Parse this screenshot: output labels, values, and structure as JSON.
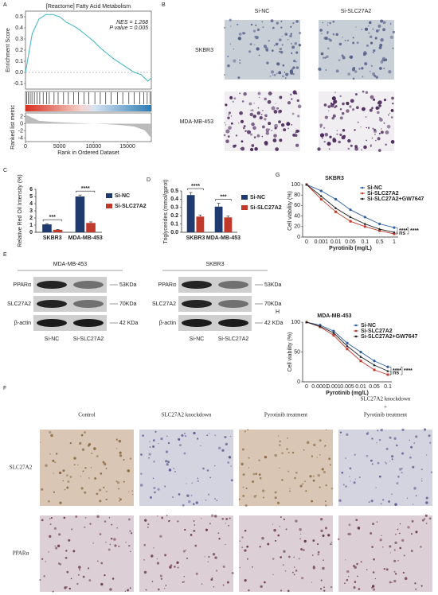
{
  "chart_data": [
    {
      "type": "gsea",
      "label": "A",
      "title": "[Reactome] Fatty Acid Metabolism",
      "annotations": [
        "NES = 1.268",
        "P value = 0.005"
      ],
      "ylabel": "Enrichment Score",
      "xlabel": "Rank in Ordered Dataset",
      "color": "#3bb4c1",
      "x": [
        0,
        1000,
        2000,
        3000,
        4000,
        5000,
        6000,
        7000,
        8000,
        9000,
        10000,
        11000,
        12000,
        13000,
        14000,
        15000,
        16000,
        17000,
        18000,
        18500
      ],
      "values": [
        0,
        0.35,
        0.48,
        0.52,
        0.52,
        0.5,
        0.45,
        0.42,
        0.38,
        0.33,
        0.28,
        0.22,
        0.17,
        0.12,
        0.08,
        0.04,
        0,
        -0.02,
        -0.08,
        -0.05
      ],
      "xlim": [
        0,
        18500
      ],
      "xticks": [
        0,
        5000,
        10000,
        15000
      ],
      "ylim": [
        -0.15,
        0.55
      ],
      "yticks": [
        0.5,
        0.4,
        0.3,
        0.2,
        0.1,
        {
          "value": 0,
          "label": "0.0"
        },
        -0.1
      ],
      "hits": [
        150,
        400,
        700,
        950,
        1300,
        1700,
        2100,
        2600,
        3100,
        3500,
        4200,
        4800,
        5600,
        6300,
        7100,
        7800,
        8600,
        9300,
        10200,
        11000,
        11800,
        12600,
        13500,
        14300,
        15200,
        16000,
        16800,
        17400,
        17900,
        18300
      ],
      "metric": {
        "ylabel": "Ranked list metric",
        "x": [
          0,
          2000,
          4000,
          6000,
          8000,
          10000,
          12000,
          14000,
          16000,
          17500,
          18500
        ],
        "values": [
          2.5,
          0.8,
          0.5,
          0.3,
          0.15,
          0,
          -0.15,
          -0.4,
          -0.8,
          -1.8,
          -4
        ],
        "ylim": [
          -5,
          3
        ],
        "yticks": [
          2,
          0,
          -2,
          -4
        ]
      }
    },
    {
      "type": "bar",
      "label": "C",
      "ylabel": "Relative Red Oil Intensity (%)",
      "categories": [
        "SKBR3",
        "MDA-MB-453"
      ],
      "series": [
        {
          "name": "Si-NC",
          "color": "#1f3a6e",
          "values": [
            1.1,
            5.0
          ],
          "errors": [
            0.1,
            0.2
          ]
        },
        {
          "name": "Si-SLC27A2",
          "color": "#c0392b",
          "values": [
            0.35,
            1.3
          ],
          "errors": [
            0.05,
            0.15
          ]
        }
      ],
      "significance": [
        "***",
        "****"
      ],
      "ylim": [
        0,
        6
      ],
      "yticks": [
        0,
        1,
        2,
        3,
        4,
        5,
        6
      ]
    },
    {
      "type": "bar",
      "label": "D",
      "ylabel": "Triglycerides (mmol/gprot)",
      "categories": [
        "SKBR3",
        "MDA-MB-453"
      ],
      "series": [
        {
          "name": "Si-NC",
          "color": "#1f3a6e",
          "values": [
            0.45,
            0.31
          ],
          "errors": [
            0.03,
            0.04
          ]
        },
        {
          "name": "Si-SLC27A2",
          "color": "#c0392b",
          "values": [
            0.19,
            0.18
          ],
          "errors": [
            0.02,
            0.015
          ]
        }
      ],
      "significance": [
        "****",
        "***"
      ],
      "ylim": [
        0,
        0.5
      ],
      "yticks": [
        {
          "value": 0,
          "label": "0.0"
        },
        0.1,
        0.2,
        0.3,
        0.4,
        0.5
      ]
    },
    {
      "type": "line",
      "label": "G",
      "title": "SKBR3",
      "ylabel": "Cell viability (%)",
      "xlabel": "Pyrotinib (mg/L)",
      "categories": [
        "0",
        "0.001",
        "0.01",
        "0.05",
        "0.1",
        "0.5",
        "1"
      ],
      "series": [
        {
          "name": "Si-NC",
          "color": "#2e5fa3",
          "values": [
            100,
            88,
            72,
            52,
            38,
            25,
            18
          ]
        },
        {
          "name": "Si-SLC27A2",
          "color": "#c0392b",
          "values": [
            100,
            72,
            48,
            30,
            20,
            12,
            6
          ]
        },
        {
          "name": "Si-SLC27A2+GW7647",
          "color": "#222222",
          "values": [
            100,
            78,
            55,
            38,
            25,
            15,
            9
          ]
        }
      ],
      "significance": [
        "****",
        "ns",
        "****"
      ],
      "ylim": [
        0,
        100
      ],
      "yticks": [
        0,
        20,
        40,
        60,
        80,
        100
      ]
    },
    {
      "type": "line",
      "label": "H",
      "title": "MDA-MB-453",
      "ylabel": "Cell viability (%)",
      "xlabel": "Pyrotinib (mg/L)",
      "categories": [
        "0",
        "0.0001",
        "0.001",
        "0.005",
        "0.01",
        "0.05",
        "0.1"
      ],
      "series": [
        {
          "name": "Si-NC",
          "color": "#2e5fa3",
          "values": [
            100,
            95,
            85,
            65,
            50,
            35,
            25
          ]
        },
        {
          "name": "Si-SLC27A2",
          "color": "#c0392b",
          "values": [
            100,
            92,
            78,
            55,
            35,
            20,
            12
          ]
        },
        {
          "name": "Si-SLC27A2+GW7647",
          "color": "#222222",
          "values": [
            100,
            93,
            82,
            60,
            42,
            28,
            18
          ]
        }
      ],
      "significance": [
        "****",
        "ns",
        "****"
      ],
      "ylim": [
        0,
        100
      ],
      "yticks": [
        0,
        50,
        100
      ]
    }
  ],
  "panel_b": {
    "label": "B",
    "columns": [
      "Si-NC",
      "Si-SLC27A2"
    ],
    "rows": [
      "SKBR3",
      "MDA-MB-453"
    ]
  },
  "panel_e": {
    "label": "E",
    "blots": [
      {
        "title": "MDA-MB-453",
        "proteins": [
          "PPARα",
          "SLC27A2",
          "β-actin"
        ],
        "sizes": [
          "53KDa",
          "70KDa",
          "42 KDa"
        ],
        "lanes": [
          "Si-NC",
          "Si-SLC27A2"
        ]
      },
      {
        "title": "SKBR3",
        "proteins": [
          "PPARα",
          "SLC27A2",
          "β-actin"
        ],
        "sizes": [
          "53KDa",
          "70KDa",
          "42 KDa"
        ],
        "lanes": [
          "Si-NC",
          "Si-SLC27A2"
        ]
      }
    ]
  },
  "panel_f": {
    "label": "F",
    "columns": [
      [
        "Control"
      ],
      [
        "SLC27A2 knockdown"
      ],
      [
        "Pyrotinib treatment"
      ],
      [
        "SLC27A2 knockdown",
        "+",
        "Pyrotinib treatment"
      ]
    ],
    "rows": [
      "SLC27A2",
      "PPARα"
    ]
  }
}
